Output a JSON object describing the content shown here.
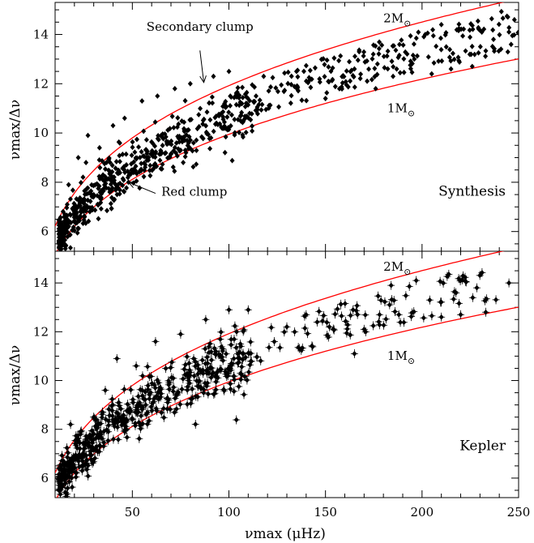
{
  "chart_data": [
    {
      "type": "scatter",
      "panel_label": "Synthesis",
      "xlabel": "νmax (μHz)",
      "ylabel": "νmax/Δν",
      "xlim": [
        10,
        250
      ],
      "ylim": [
        5.2,
        15.3
      ],
      "x_ticks": [
        50,
        100,
        150,
        200,
        250
      ],
      "y_ticks": [
        6,
        8,
        10,
        12,
        14
      ],
      "error_bars": false,
      "grid": false,
      "curves": [
        {
          "name": "2M⊙",
          "color": "#ff0000",
          "a": 3.24,
          "b": 0.2829,
          "label_at": [
            180,
            14.5
          ]
        },
        {
          "name": "1M⊙",
          "color": "#ff0000",
          "a": 2.58,
          "b": 0.293,
          "label_at": [
            182,
            10.85
          ]
        }
      ],
      "annotations": [
        {
          "text": "Secondary clump",
          "at": [
            85,
            14.15
          ],
          "arrow_from": [
            85,
            13.35
          ],
          "arrow_to": [
            87,
            12.05
          ]
        },
        {
          "text": "Red clump",
          "at": [
            65,
            7.45
          ],
          "arrow_from": [
            62,
            7.55
          ],
          "arrow_to": [
            48,
            8.0
          ]
        }
      ],
      "scatter_model": {
        "seed": 1234,
        "n_dense": 560,
        "n_sparse": 230,
        "x_dense": [
          12,
          115
        ],
        "x_sparse": [
          100,
          250
        ]
      },
      "points": [
        [
          14,
          6.1
        ],
        [
          17,
          7.9
        ],
        [
          22,
          9.0
        ],
        [
          27,
          9.9
        ],
        [
          26,
          8.8
        ],
        [
          33,
          9.4
        ],
        [
          40,
          10.3
        ],
        [
          46,
          10.6
        ],
        [
          55,
          11.3
        ],
        [
          63,
          11.5
        ],
        [
          72,
          11.8
        ],
        [
          80,
          12.0
        ],
        [
          92,
          12.3
        ],
        [
          100,
          12.5
        ],
        [
          118,
          12.3
        ],
        [
          135,
          12.5
        ],
        [
          150,
          11.4
        ],
        [
          165,
          12.6
        ],
        [
          176,
          11.8
        ],
        [
          185,
          12.3
        ],
        [
          196,
          13.0
        ],
        [
          205,
          12.4
        ],
        [
          210,
          14.4
        ],
        [
          215,
          12.6
        ],
        [
          226,
          12.7
        ],
        [
          237,
          13.8
        ],
        [
          245,
          14.1
        ],
        [
          48,
          8.0
        ]
      ]
    },
    {
      "type": "scatter",
      "panel_label": "Kepler",
      "xlabel": "νmax (μHz)",
      "ylabel": "νmax/Δν",
      "xlim": [
        10,
        250
      ],
      "ylim": [
        5.2,
        15.3
      ],
      "x_ticks": [
        50,
        100,
        150,
        200,
        250
      ],
      "y_ticks": [
        6,
        8,
        10,
        12,
        14
      ],
      "error_bars": true,
      "grid": false,
      "curves": [
        {
          "name": "2M⊙",
          "color": "#ff0000",
          "a": 3.24,
          "b": 0.2829,
          "label_at": [
            180,
            14.5
          ]
        },
        {
          "name": "1M⊙",
          "color": "#ff0000",
          "a": 2.58,
          "b": 0.293,
          "label_at": [
            182,
            10.85
          ]
        }
      ],
      "scatter_model": {
        "seed": 4321,
        "n_dense": 520,
        "n_sparse": 90,
        "x_dense": [
          12,
          112
        ],
        "x_sparse": [
          110,
          240
        ]
      },
      "points": [
        [
          18,
          8.2
        ],
        [
          24,
          6.3
        ],
        [
          30,
          8.5
        ],
        [
          36,
          9.6
        ],
        [
          42,
          10.9
        ],
        [
          52,
          10.6
        ],
        [
          62,
          11.6
        ],
        [
          75,
          11.9
        ],
        [
          88,
          12.5
        ],
        [
          100,
          12.9
        ],
        [
          110,
          12.9
        ],
        [
          130,
          12.2
        ],
        [
          140,
          12.7
        ],
        [
          152,
          12.2
        ],
        [
          165,
          11.1
        ],
        [
          170,
          12.1
        ],
        [
          178,
          12.7
        ],
        [
          184,
          13.9
        ],
        [
          188,
          12.7
        ],
        [
          197,
          14.1
        ],
        [
          204,
          13.3
        ],
        [
          210,
          12.6
        ],
        [
          220,
          12.7
        ],
        [
          233,
          12.8
        ],
        [
          245,
          14.0
        ]
      ]
    }
  ]
}
